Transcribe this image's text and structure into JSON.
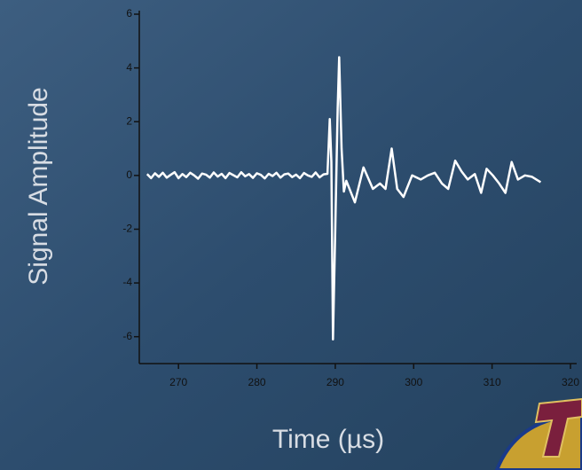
{
  "chart_data": {
    "type": "line",
    "xlabel": "Time (µs)",
    "ylabel": "Signal Amplitude",
    "xlim": [
      265,
      320
    ],
    "xticks": [
      270,
      280,
      290,
      300,
      310,
      320
    ],
    "ylim": [
      -7,
      6
    ],
    "yticks": [
      -6,
      -4,
      -2,
      0,
      2,
      4,
      6
    ],
    "series": [
      {
        "color": "#ffffff",
        "x": [
          266,
          266.5,
          267,
          267.5,
          268,
          268.5,
          269,
          269.5,
          270,
          270.5,
          271,
          271.5,
          272,
          272.5,
          273,
          273.5,
          274,
          274.5,
          275,
          275.5,
          276,
          276.5,
          277,
          277.5,
          278,
          278.5,
          279,
          279.5,
          280,
          280.5,
          281,
          281.5,
          282,
          282.5,
          283,
          283.5,
          284,
          284.5,
          285,
          285.5,
          286,
          286.5,
          287,
          287.5,
          288,
          288.5,
          289,
          289.3,
          289.5,
          289.7,
          290,
          290.3,
          290.5,
          290.8,
          291.1,
          291.4,
          292.5,
          293.6,
          294.8,
          295.7,
          296.4,
          297.2,
          297.9,
          298.7,
          299.8,
          300.9,
          301.8,
          302.7,
          303.6,
          304.4,
          305.3,
          306.1,
          306.9,
          307.8,
          308.6,
          309.3,
          310.1,
          310.9,
          311.7,
          312.5,
          313.3,
          314.2,
          315.1,
          316.2
        ],
        "values": [
          0.05,
          -0.1,
          0.08,
          -0.05,
          0.1,
          -0.08,
          0.02,
          0.12,
          -0.1,
          0.05,
          -0.06,
          0.1,
          0.0,
          -0.12,
          0.07,
          0.03,
          -0.08,
          0.11,
          -0.04,
          0.06,
          -0.1,
          0.09,
          0.01,
          -0.07,
          0.12,
          -0.03,
          0.05,
          -0.09,
          0.08,
          0.02,
          -0.11,
          0.06,
          -0.02,
          0.1,
          -0.08,
          0.04,
          0.07,
          -0.06,
          0.03,
          -0.1,
          0.09,
          0.0,
          -0.05,
          0.11,
          -0.07,
          0.04,
          0.06,
          2.1,
          0.5,
          -6.1,
          -2,
          2.5,
          4.4,
          1,
          -0.6,
          -0.2,
          -1.0,
          0.3,
          -0.5,
          -0.3,
          -0.5,
          1.0,
          -0.5,
          -0.8,
          0.0,
          -0.15,
          0.0,
          0.1,
          -0.3,
          -0.5,
          0.55,
          0.15,
          -0.15,
          0.05,
          -0.65,
          0.25,
          0.0,
          -0.3,
          -0.65,
          0.5,
          -0.15,
          0.0,
          -0.05,
          -0.25
        ]
      }
    ]
  }
}
